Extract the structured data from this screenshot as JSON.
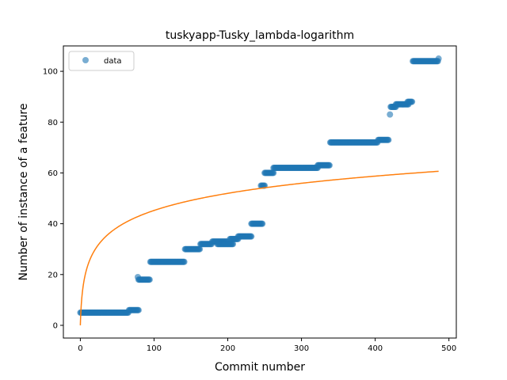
{
  "chart_data": {
    "type": "scatter",
    "title": "tuskyapp-Tusky_lambda-logarithm",
    "xlabel": "Commit number",
    "ylabel": "Number of instance of a feature",
    "xlim": [
      -23,
      510
    ],
    "ylim": [
      -5,
      110
    ],
    "xticks": [
      0,
      100,
      200,
      300,
      400,
      500
    ],
    "yticks": [
      0,
      20,
      40,
      60,
      80,
      100
    ],
    "grid": false,
    "legend": {
      "placement": "top-left",
      "entries": [
        "data"
      ]
    },
    "colors": {
      "data": "#1f77b4",
      "fit": "#ff7f0e"
    },
    "series": [
      {
        "name": "data",
        "kind": "scatter",
        "segments": [
          {
            "x_start": 0,
            "x_end": 65,
            "y": 5
          },
          {
            "x_start": 66,
            "x_end": 79,
            "y": 6
          },
          {
            "x_start": 78,
            "x_end": 78,
            "y": 19
          },
          {
            "x_start": 79,
            "x_end": 94,
            "y": 18
          },
          {
            "x_start": 95,
            "x_end": 141,
            "y": 25
          },
          {
            "x_start": 142,
            "x_end": 162,
            "y": 30
          },
          {
            "x_start": 163,
            "x_end": 178,
            "y": 32
          },
          {
            "x_start": 179,
            "x_end": 199,
            "y": 33
          },
          {
            "x_start": 186,
            "x_end": 207,
            "y": 32
          },
          {
            "x_start": 203,
            "x_end": 214,
            "y": 34
          },
          {
            "x_start": 214,
            "x_end": 232,
            "y": 35
          },
          {
            "x_start": 232,
            "x_end": 247,
            "y": 40
          },
          {
            "x_start": 245,
            "x_end": 250,
            "y": 55
          },
          {
            "x_start": 250,
            "x_end": 262,
            "y": 60
          },
          {
            "x_start": 262,
            "x_end": 322,
            "y": 62
          },
          {
            "x_start": 322,
            "x_end": 338,
            "y": 63
          },
          {
            "x_start": 339,
            "x_end": 403,
            "y": 72
          },
          {
            "x_start": 404,
            "x_end": 418,
            "y": 73
          },
          {
            "x_start": 420,
            "x_end": 420,
            "y": 83
          },
          {
            "x_start": 421,
            "x_end": 428,
            "y": 86
          },
          {
            "x_start": 428,
            "x_end": 445,
            "y": 87
          },
          {
            "x_start": 444,
            "x_end": 450,
            "y": 88
          },
          {
            "x_start": 451,
            "x_end": 485,
            "y": 104
          },
          {
            "x_start": 486,
            "x_end": 486,
            "y": 105
          }
        ]
      },
      {
        "name": "",
        "kind": "line",
        "formula": "y = 9.8 * ln(x + 1)",
        "x_range": [
          0,
          486
        ]
      }
    ]
  }
}
